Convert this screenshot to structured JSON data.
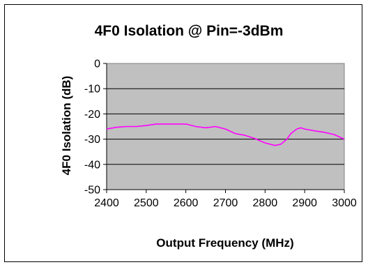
{
  "chart_data": {
    "type": "line",
    "title": "4F0 Isolation @ Pin=-3dBm",
    "xlabel": "Output Frequency (MHz)",
    "ylabel": "4F0 Isolation (dB)",
    "xlim": [
      2400,
      3000
    ],
    "ylim": [
      -50,
      0
    ],
    "x_ticks": [
      2400,
      2500,
      2600,
      2700,
      2800,
      2900,
      3000
    ],
    "y_ticks": [
      0,
      -10,
      -20,
      -30,
      -40,
      -50
    ],
    "grid": "horizontal",
    "legend": "none",
    "plot_background": "#c0c0c0",
    "series": [
      {
        "color": "#ff00ff",
        "x": [
          2400,
          2425,
          2450,
          2475,
          2500,
          2525,
          2550,
          2575,
          2600,
          2625,
          2650,
          2660,
          2675,
          2700,
          2725,
          2750,
          2775,
          2800,
          2825,
          2840,
          2855,
          2865,
          2880,
          2890,
          2900,
          2925,
          2950,
          2975,
          3000
        ],
        "y": [
          -26,
          -25.3,
          -25,
          -25,
          -24.6,
          -24,
          -24,
          -24,
          -24,
          -25,
          -25.5,
          -25.3,
          -25,
          -26,
          -27.8,
          -28.5,
          -29.8,
          -31.5,
          -32.5,
          -32,
          -30,
          -27.8,
          -26,
          -25.5,
          -26,
          -26.7,
          -27.3,
          -28.2,
          -30
        ]
      }
    ]
  }
}
